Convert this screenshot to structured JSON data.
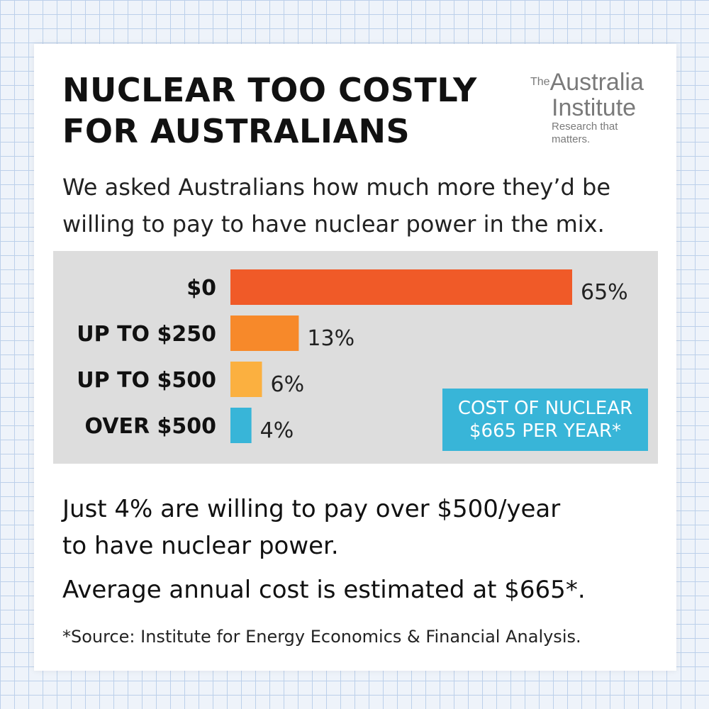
{
  "title_line1": "NUCLEAR TOO COSTLY",
  "title_line2": "FOR AUSTRALIANS",
  "logo": {
    "the": "The",
    "line1": "Australia",
    "line2": "Institute",
    "tagline": "Research that matters."
  },
  "intro_line1": "We asked Australians how much more they’d be",
  "intro_line2": "willing to pay to have nuclear power in the mix.",
  "callout": {
    "line1": "COST OF NUCLEAR",
    "line2": "$665 PER YEAR*"
  },
  "summary_line1": "Just 4% are willing to pay over $500/year",
  "summary_line2": "to have nuclear power.",
  "average_text": "Average annual cost is estimated at $665*.",
  "source_text": "*Source: Institute for Energy Economics & Financial Analysis.",
  "colors": {
    "bar_0": "#f05a28",
    "bar_250": "#f7892a",
    "bar_500": "#fbb040",
    "bar_over500": "#38b5d8",
    "panel": "#dddddd"
  },
  "chart_data": {
    "type": "bar",
    "orientation": "horizontal",
    "categories": [
      "$0",
      "UP TO $250",
      "UP TO $500",
      "OVER $500"
    ],
    "values": [
      65,
      13,
      6,
      4
    ],
    "value_labels": [
      "65%",
      "13%",
      "6%",
      "4%"
    ],
    "xlim": [
      0,
      65
    ],
    "grid": false
  }
}
